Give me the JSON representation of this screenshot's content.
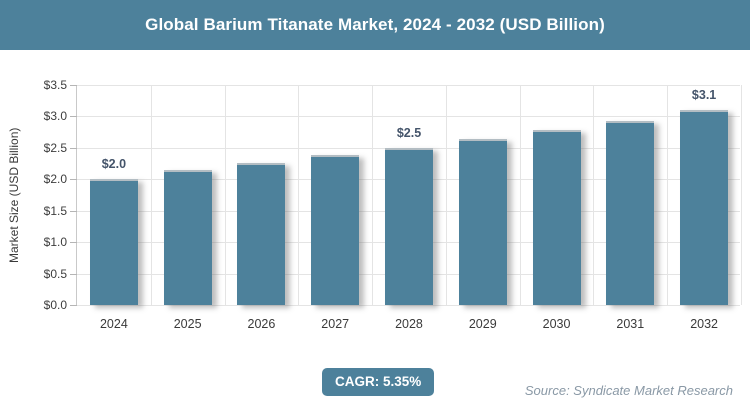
{
  "theme": {
    "accent": "#4d819b",
    "grid_color": "#e4e4e4",
    "data_label_color": "#44546a"
  },
  "header": {
    "title": "Global Barium Titanate Market, 2024 - 2032 (USD Billion)"
  },
  "chart_data": {
    "type": "bar",
    "title": "Global Barium Titanate Market, 2024 - 2032 (USD Billion)",
    "categories": [
      "2024",
      "2025",
      "2026",
      "2027",
      "2028",
      "2029",
      "2030",
      "2031",
      "2032"
    ],
    "values": [
      2.0,
      2.15,
      2.26,
      2.38,
      2.5,
      2.64,
      2.78,
      2.93,
      3.1
    ],
    "data_labels": [
      "$2.0",
      "",
      "",
      "",
      "$2.5",
      "",
      "",
      "",
      "$3.1"
    ],
    "xlabel": "",
    "ylabel": "Market Size (USD Billion)",
    "ylim": [
      0,
      3.5
    ],
    "ytick_step": 0.5,
    "ytick_labels": [
      "$0.0",
      "$0.5",
      "$1.0",
      "$1.5",
      "$2.0",
      "$2.5",
      "$3.0",
      "$3.5"
    ],
    "grid": true,
    "legend": "none",
    "bar_color": "#4d819b"
  },
  "footer": {
    "cagr_label": "CAGR: 5.35%",
    "source": "Source: Syndicate Market Research"
  }
}
